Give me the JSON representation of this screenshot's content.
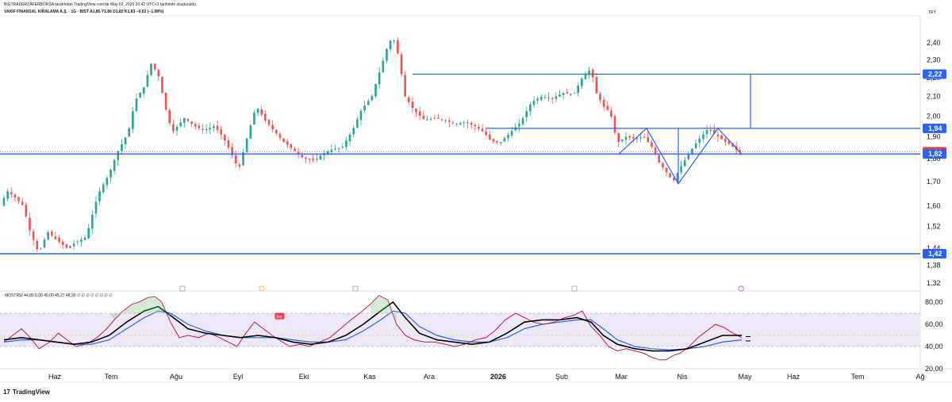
{
  "header": {
    "line1": "BIGTRADERZAFERBORSA tarafından TradingView.com'de May 02, 2026 20:42 UTC+3 tarihinde oluşturuldu",
    "line2": "VAKIF FİNANSAL KİRALAMA A.Ş. · 1G · BIST  A1,85  Y1,86  D1,82  K1,83  −0,02 (−1,08%)",
    "currency": "TRY"
  },
  "colors": {
    "up": "#26a69a",
    "down": "#ef5350",
    "line": "#2962ff",
    "tag_blue": "#2962ff",
    "tag_red": "#f23645",
    "rsi": "#c2185b",
    "sma_black": "#000000",
    "sma_blue": "#2962ff",
    "band": "#ede7f6"
  },
  "price_tags": [
    {
      "label": "2,22",
      "value": 2.22,
      "color": "blue"
    },
    {
      "label": "1,94",
      "value": 1.94,
      "color": "blue"
    },
    {
      "label": "1,83",
      "value": 1.83,
      "color": "red"
    },
    {
      "label": "1,82",
      "value": 1.82,
      "color": "blue"
    },
    {
      "label": "1,42",
      "value": 1.42,
      "color": "blue"
    }
  ],
  "osc": {
    "legend": "MOSTRSI  44,80  0,00  40,00  45,27  48,90  ∅ ∅ ∅ ∅ ∅ ∅ ∅ ∅",
    "ticks": [
      "80,00",
      "60,00",
      "40,00",
      "20,00"
    ],
    "sell_label": "Sat"
  },
  "logo": {
    "mark": "17",
    "text": "TradingView"
  },
  "chart_data": {
    "type": "candlestick",
    "price_axis": {
      "ticks": [
        "2,40",
        "2,30",
        "2,20",
        "2,10",
        "2,00",
        "1,90",
        "1,80",
        "1,70",
        "1,60",
        "1,52",
        "1,44",
        "1,38",
        "1,32"
      ],
      "range": [
        1.32,
        2.4
      ],
      "scale": "log"
    },
    "time_axis": {
      "labels": [
        "Haz",
        "Tem",
        "Ağu",
        "Eyl",
        "Eki",
        "Kas",
        "Ara",
        "2026",
        "Şub",
        "Mar",
        "Nis",
        "May",
        "Haz",
        "Tem",
        "Ağ"
      ]
    },
    "horizontal_levels": [
      2.22,
      1.94,
      1.82,
      1.42
    ],
    "close_path": [
      [
        0,
        1.6
      ],
      [
        8,
        1.66
      ],
      [
        18,
        1.63
      ],
      [
        26,
        1.6
      ],
      [
        34,
        1.5
      ],
      [
        44,
        1.42
      ],
      [
        54,
        1.5
      ],
      [
        64,
        1.47
      ],
      [
        76,
        1.44
      ],
      [
        86,
        1.46
      ],
      [
        98,
        1.48
      ],
      [
        112,
        1.65
      ],
      [
        124,
        1.73
      ],
      [
        134,
        1.83
      ],
      [
        146,
        1.92
      ],
      [
        154,
        2.08
      ],
      [
        164,
        2.15
      ],
      [
        172,
        2.28
      ],
      [
        180,
        2.22
      ],
      [
        188,
        2.05
      ],
      [
        196,
        1.92
      ],
      [
        210,
        1.99
      ],
      [
        222,
        1.95
      ],
      [
        232,
        1.93
      ],
      [
        244,
        1.95
      ],
      [
        254,
        1.9
      ],
      [
        264,
        1.82
      ],
      [
        272,
        1.75
      ],
      [
        282,
        1.9
      ],
      [
        292,
        2.05
      ],
      [
        302,
        1.98
      ],
      [
        312,
        1.93
      ],
      [
        322,
        1.88
      ],
      [
        334,
        1.84
      ],
      [
        346,
        1.8
      ],
      [
        358,
        1.79
      ],
      [
        368,
        1.82
      ],
      [
        378,
        1.84
      ],
      [
        390,
        1.85
      ],
      [
        402,
        1.93
      ],
      [
        412,
        2.03
      ],
      [
        424,
        2.1
      ],
      [
        434,
        2.25
      ],
      [
        442,
        2.38
      ],
      [
        448,
        2.44
      ],
      [
        454,
        2.33
      ],
      [
        462,
        2.1
      ],
      [
        472,
        2.03
      ],
      [
        484,
        1.98
      ],
      [
        496,
        1.99
      ],
      [
        508,
        1.98
      ],
      [
        518,
        1.96
      ],
      [
        530,
        1.97
      ],
      [
        542,
        1.95
      ],
      [
        552,
        1.92
      ],
      [
        560,
        1.88
      ],
      [
        570,
        1.87
      ],
      [
        582,
        1.92
      ],
      [
        594,
        1.97
      ],
      [
        606,
        2.07
      ],
      [
        618,
        2.1
      ],
      [
        630,
        2.09
      ],
      [
        642,
        2.12
      ],
      [
        654,
        2.11
      ],
      [
        664,
        2.2
      ],
      [
        674,
        2.25
      ],
      [
        680,
        2.12
      ],
      [
        688,
        2.05
      ],
      [
        696,
        2.02
      ],
      [
        704,
        1.87
      ],
      [
        714,
        1.9
      ],
      [
        724,
        1.89
      ],
      [
        734,
        1.9
      ],
      [
        744,
        1.85
      ],
      [
        752,
        1.78
      ],
      [
        760,
        1.74
      ],
      [
        768,
        1.7
      ],
      [
        776,
        1.76
      ],
      [
        784,
        1.81
      ],
      [
        792,
        1.86
      ],
      [
        800,
        1.9
      ],
      [
        808,
        1.94
      ],
      [
        816,
        1.91
      ],
      [
        826,
        1.88
      ],
      [
        834,
        1.86
      ],
      [
        842,
        1.83
      ]
    ],
    "rsi_path": [
      [
        0,
        44
      ],
      [
        10,
        50
      ],
      [
        20,
        56
      ],
      [
        30,
        48
      ],
      [
        40,
        38
      ],
      [
        52,
        44
      ],
      [
        62,
        52
      ],
      [
        72,
        46
      ],
      [
        82,
        40
      ],
      [
        94,
        42
      ],
      [
        106,
        48
      ],
      [
        116,
        55
      ],
      [
        126,
        64
      ],
      [
        136,
        72
      ],
      [
        146,
        78
      ],
      [
        154,
        80
      ],
      [
        164,
        84
      ],
      [
        172,
        85
      ],
      [
        180,
        80
      ],
      [
        190,
        62
      ],
      [
        200,
        48
      ],
      [
        210,
        50
      ],
      [
        222,
        48
      ],
      [
        234,
        52
      ],
      [
        246,
        48
      ],
      [
        256,
        44
      ],
      [
        266,
        40
      ],
      [
        276,
        52
      ],
      [
        286,
        62
      ],
      [
        296,
        56
      ],
      [
        306,
        50
      ],
      [
        316,
        45
      ],
      [
        326,
        40
      ],
      [
        338,
        42
      ],
      [
        348,
        40
      ],
      [
        360,
        44
      ],
      [
        372,
        48
      ],
      [
        384,
        56
      ],
      [
        396,
        64
      ],
      [
        406,
        70
      ],
      [
        418,
        78
      ],
      [
        428,
        86
      ],
      [
        438,
        82
      ],
      [
        448,
        60
      ],
      [
        458,
        50
      ],
      [
        468,
        46
      ],
      [
        480,
        44
      ],
      [
        492,
        44
      ],
      [
        504,
        42
      ],
      [
        514,
        40
      ],
      [
        526,
        42
      ],
      [
        538,
        46
      ],
      [
        550,
        48
      ],
      [
        560,
        54
      ],
      [
        572,
        64
      ],
      [
        584,
        70
      ],
      [
        594,
        66
      ],
      [
        604,
        62
      ],
      [
        616,
        60
      ],
      [
        628,
        62
      ],
      [
        640,
        66
      ],
      [
        650,
        68
      ],
      [
        660,
        72
      ],
      [
        670,
        58
      ],
      [
        680,
        50
      ],
      [
        690,
        40
      ],
      [
        700,
        36
      ],
      [
        710,
        38
      ],
      [
        720,
        36
      ],
      [
        730,
        34
      ],
      [
        740,
        30
      ],
      [
        748,
        28
      ],
      [
        756,
        28
      ],
      [
        764,
        32
      ],
      [
        772,
        34
      ],
      [
        782,
        40
      ],
      [
        792,
        48
      ],
      [
        802,
        54
      ],
      [
        812,
        60
      ],
      [
        822,
        57
      ],
      [
        832,
        52
      ],
      [
        842,
        48
      ]
    ],
    "sma_black_path": [
      [
        0,
        46
      ],
      [
        20,
        48
      ],
      [
        40,
        46
      ],
      [
        60,
        44
      ],
      [
        80,
        42
      ],
      [
        100,
        44
      ],
      [
        120,
        50
      ],
      [
        140,
        62
      ],
      [
        160,
        72
      ],
      [
        176,
        76
      ],
      [
        190,
        68
      ],
      [
        210,
        56
      ],
      [
        230,
        52
      ],
      [
        250,
        50
      ],
      [
        270,
        48
      ],
      [
        290,
        50
      ],
      [
        310,
        48
      ],
      [
        330,
        44
      ],
      [
        350,
        42
      ],
      [
        370,
        44
      ],
      [
        390,
        50
      ],
      [
        410,
        60
      ],
      [
        430,
        72
      ],
      [
        444,
        80
      ],
      [
        458,
        66
      ],
      [
        474,
        52
      ],
      [
        494,
        46
      ],
      [
        514,
        44
      ],
      [
        534,
        42
      ],
      [
        554,
        44
      ],
      [
        574,
        52
      ],
      [
        594,
        62
      ],
      [
        614,
        64
      ],
      [
        634,
        64
      ],
      [
        654,
        66
      ],
      [
        670,
        62
      ],
      [
        684,
        50
      ],
      [
        700,
        42
      ],
      [
        720,
        38
      ],
      [
        740,
        36
      ],
      [
        760,
        36
      ],
      [
        780,
        38
      ],
      [
        800,
        44
      ],
      [
        820,
        50
      ],
      [
        842,
        50
      ]
    ],
    "sma_blue_path": [
      [
        0,
        44
      ],
      [
        20,
        46
      ],
      [
        40,
        46
      ],
      [
        60,
        44
      ],
      [
        80,
        42
      ],
      [
        100,
        42
      ],
      [
        120,
        46
      ],
      [
        140,
        56
      ],
      [
        160,
        66
      ],
      [
        176,
        72
      ],
      [
        190,
        70
      ],
      [
        210,
        60
      ],
      [
        230,
        54
      ],
      [
        250,
        50
      ],
      [
        270,
        48
      ],
      [
        290,
        48
      ],
      [
        310,
        48
      ],
      [
        330,
        46
      ],
      [
        350,
        44
      ],
      [
        370,
        44
      ],
      [
        390,
        46
      ],
      [
        410,
        54
      ],
      [
        430,
        64
      ],
      [
        444,
        72
      ],
      [
        458,
        70
      ],
      [
        474,
        58
      ],
      [
        494,
        50
      ],
      [
        514,
        46
      ],
      [
        534,
        44
      ],
      [
        554,
        44
      ],
      [
        574,
        48
      ],
      [
        594,
        56
      ],
      [
        614,
        60
      ],
      [
        634,
        62
      ],
      [
        654,
        64
      ],
      [
        670,
        64
      ],
      [
        684,
        56
      ],
      [
        700,
        46
      ],
      [
        720,
        40
      ],
      [
        740,
        38
      ],
      [
        760,
        37
      ],
      [
        780,
        38
      ],
      [
        800,
        40
      ],
      [
        820,
        44
      ],
      [
        842,
        46
      ]
    ],
    "osc_range": [
      20,
      86
    ],
    "osc_band": [
      40,
      70
    ],
    "osc_midline": 50
  }
}
